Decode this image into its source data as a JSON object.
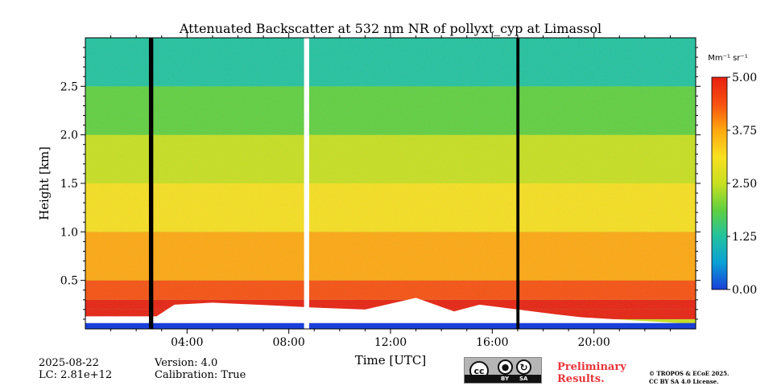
{
  "chart_data": {
    "type": "heatmap",
    "title": "Attenuated Backscatter at 532 nm NR of pollyxt_cyp at Limassol",
    "xlabel": "Time [UTC]",
    "ylabel": "Height [km]",
    "x_unit": "hours UTC",
    "xlim": [
      0,
      24
    ],
    "ylim": [
      0,
      3.0
    ],
    "xticks": [
      {
        "value": 4,
        "label": "04:00"
      },
      {
        "value": 8,
        "label": "08:00"
      },
      {
        "value": 12,
        "label": "12:00"
      },
      {
        "value": 16,
        "label": "16:00"
      },
      {
        "value": 20,
        "label": "20:00"
      }
    ],
    "yticks": [
      {
        "value": 0.5,
        "label": "0.5"
      },
      {
        "value": 1.0,
        "label": "1.0"
      },
      {
        "value": 1.5,
        "label": "1.5"
      },
      {
        "value": 2.0,
        "label": "2.0"
      },
      {
        "value": 2.5,
        "label": "2.5"
      }
    ],
    "colorbar": {
      "unit": "Mm⁻¹ sr⁻¹",
      "range": [
        0.0,
        5.0
      ],
      "ticks": [
        "0.00",
        "1.25",
        "2.50",
        "3.75",
        "5.00"
      ],
      "colormap": [
        "#1a3fd9",
        "#0a9fd6",
        "#22c2a0",
        "#60d040",
        "#c8e020",
        "#f8e020",
        "#ffa810",
        "#f85010",
        "#e82010"
      ]
    },
    "black_gaps": [
      [
        2.5,
        2.67
      ],
      [
        16.95,
        17.07
      ]
    ],
    "white_gaps": [
      [
        8.6,
        8.8
      ]
    ],
    "background_signal_column_profile": {
      "height_km": [
        0.0,
        0.1,
        0.2,
        0.3,
        0.5,
        1.0,
        1.5,
        2.0,
        2.5,
        3.0
      ],
      "value_Mm-1_sr-1": [
        0.0,
        5.0,
        4.8,
        4.6,
        4.2,
        3.6,
        3.0,
        2.2,
        1.4,
        0.6
      ]
    },
    "low_cloud_saturation_top_km": [
      {
        "t": 0,
        "h": 0.13
      },
      {
        "t": 2.8,
        "h": 0.13
      },
      {
        "t": 3.5,
        "h": 0.25
      },
      {
        "t": 5.0,
        "h": 0.27
      },
      {
        "t": 7.5,
        "h": 0.24
      },
      {
        "t": 9.0,
        "h": 0.22
      },
      {
        "t": 11.0,
        "h": 0.2
      },
      {
        "t": 13.0,
        "h": 0.32
      },
      {
        "t": 14.5,
        "h": 0.18
      },
      {
        "t": 15.5,
        "h": 0.25
      },
      {
        "t": 17.0,
        "h": 0.2
      },
      {
        "t": 18.5,
        "h": 0.15
      },
      {
        "t": 19.5,
        "h": 0.12
      },
      {
        "t": 24,
        "h": 0.05
      }
    ]
  },
  "info": {
    "date": "2025-08-22",
    "lc": "LC: 2.81e+12",
    "version": "Version: 4.0",
    "calibration": "Calibration: True",
    "preliminary_line1": "Preliminary",
    "preliminary_line2": "Results.",
    "copyright_line1": "© TROPOS & ECoE 2025.",
    "copyright_line2": "CC BY SA 4.0 License.",
    "cc_by": "BY",
    "cc_sa": "SA",
    "cc_mark": "cc"
  }
}
